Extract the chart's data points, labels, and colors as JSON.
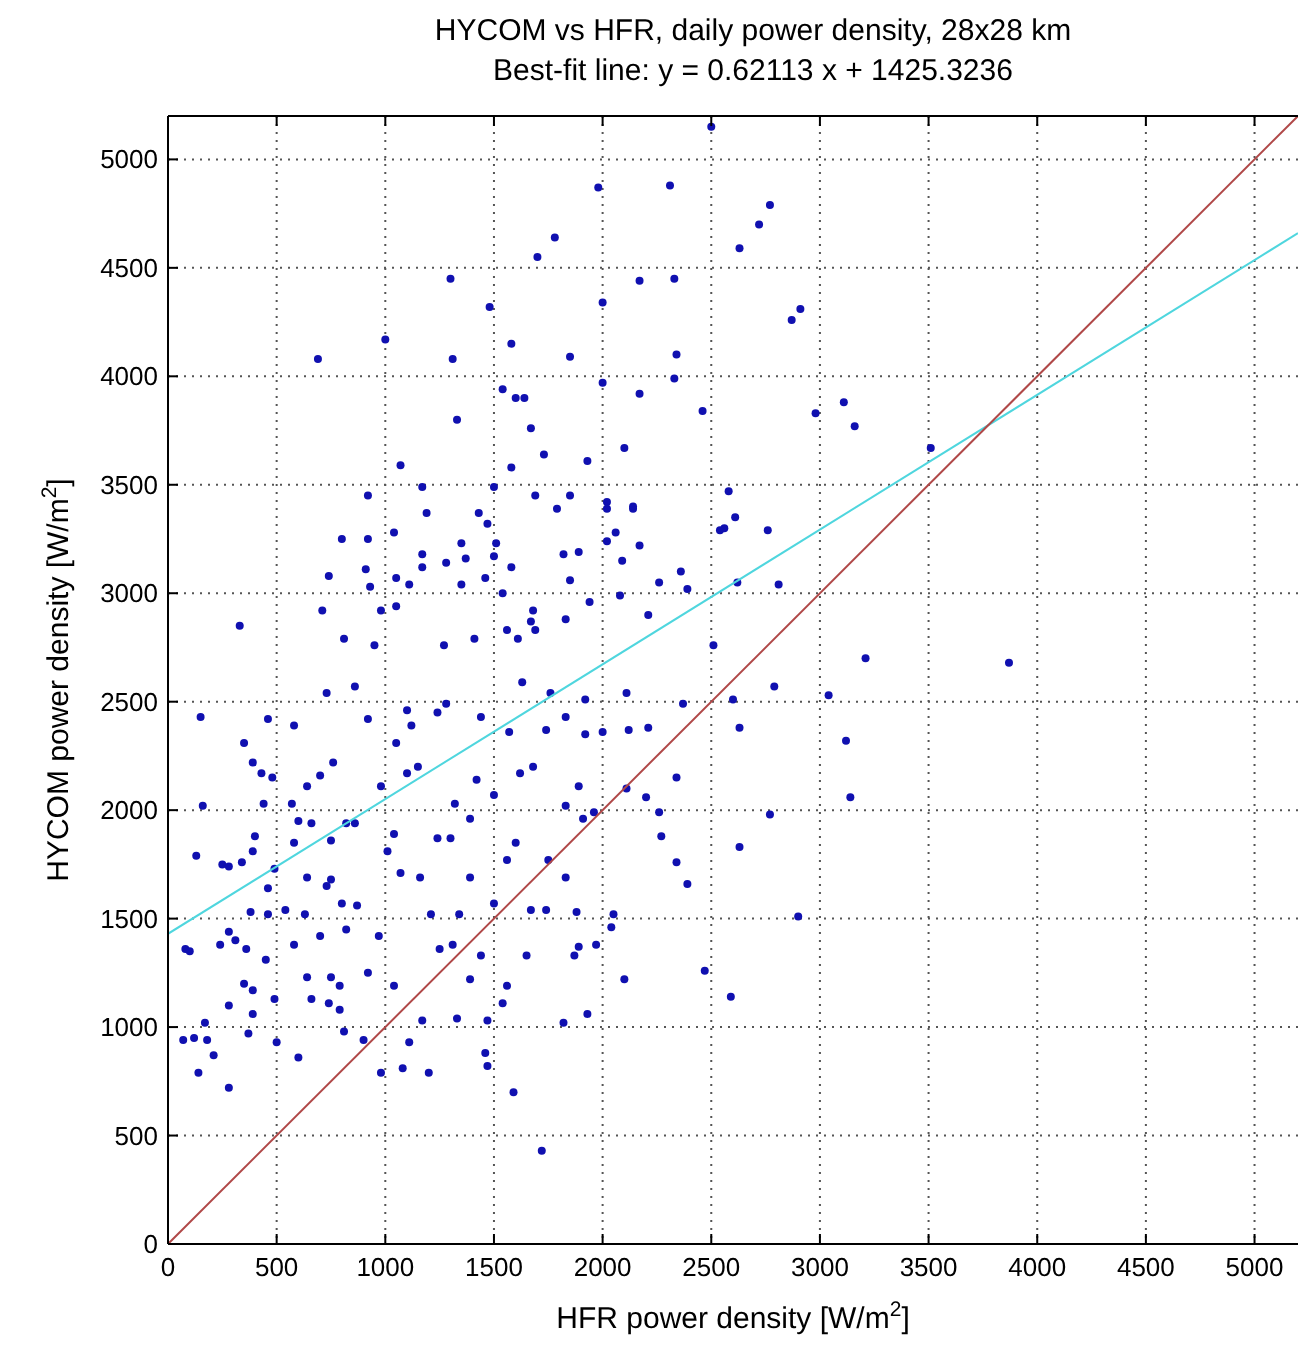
{
  "chart_data": {
    "type": "scatter",
    "title": "HYCOM vs HFR, daily power density, 28x28 km",
    "subtitle": "Best-fit line: y = 0.62113 x + 1425.3236",
    "xlabel": "HFR power density [W/m$^{2}$]",
    "ylabel": "HYCOM power density [W/m$^{2}$]",
    "xlim": [
      0,
      5200
    ],
    "ylim": [
      0,
      5200
    ],
    "xticks": [
      0,
      500,
      1000,
      1500,
      2000,
      2500,
      3000,
      3500,
      4000,
      4500,
      5000
    ],
    "yticks": [
      0,
      500,
      1000,
      1500,
      2000,
      2500,
      3000,
      3500,
      4000,
      4500,
      5000
    ],
    "grid": true,
    "series": [
      {
        "color": "#1010b0",
        "marker": "circle",
        "x": [
          1980,
          2310,
          1780,
          1700,
          1300,
          1480,
          2170,
          2330,
          2000,
          1000,
          690,
          1310,
          1580,
          1850,
          2340,
          2000,
          2330,
          2170,
          2460,
          1540,
          1600,
          1640,
          1330,
          1670,
          2100,
          1730,
          1930,
          1070,
          1580,
          1170,
          1500,
          920,
          1690,
          1850,
          2020,
          2140,
          1190,
          1790,
          2560,
          150,
          160,
          130,
          80,
          100,
          170,
          70,
          120,
          180,
          210,
          140,
          280,
          250,
          280,
          240,
          280,
          310,
          280,
          370,
          390,
          350,
          390,
          430,
          480,
          440,
          400,
          340,
          390,
          460,
          490,
          380,
          460,
          360,
          450,
          350,
          390,
          490,
          500,
          600,
          570,
          600,
          580,
          640,
          700,
          760,
          660,
          750,
          820,
          860,
          640,
          750,
          540,
          630,
          730,
          800,
          870,
          820,
          580,
          700,
          640,
          750,
          790,
          660,
          740,
          790,
          810,
          900,
          980,
          920,
          970,
          1010,
          980,
          1050,
          1120,
          1240,
          1100,
          1150,
          1040,
          1070,
          1160,
          1040,
          1110,
          1080,
          1200,
          1170,
          1250,
          1210,
          1310,
          1340,
          1300,
          1240,
          1320,
          1420,
          1500,
          1390,
          1390,
          1500,
          1440,
          1390,
          1330,
          1470,
          1460,
          1470,
          1540,
          1560,
          1590,
          1720,
          1650,
          1670,
          1740,
          1750,
          1830,
          1600,
          1560,
          1620,
          1680,
          1570,
          1740,
          1830,
          1920,
          1890,
          1830,
          1910,
          1960,
          1880,
          1890,
          1870,
          1970,
          1820,
          1930,
          2100,
          2040,
          2050,
          2110,
          2200,
          2260,
          2270,
          2340,
          2340,
          2390,
          2470,
          2210,
          2370,
          2120,
          2000,
          1920,
          1760,
          1630,
          1440,
          1280,
          1100,
          920,
          860,
          730,
          580,
          460,
          330,
          710,
          800,
          740,
          920,
          910,
          930,
          1040,
          1050,
          980,
          1050,
          1110,
          1170,
          1170,
          1280,
          1350,
          1370,
          1350,
          1430,
          1470,
          1510,
          1460,
          1500,
          1540,
          1580,
          1560,
          1610,
          1680,
          1670,
          1820,
          1890,
          1850,
          1940,
          2020,
          2060,
          2090,
          2020,
          2140,
          2170,
          2260,
          2360,
          2390,
          2210,
          2080,
          1830,
          1690,
          1410,
          1270,
          950,
          810,
          2510,
          2540,
          2500,
          2770,
          2720,
          2630,
          2870,
          2910,
          3110,
          3160,
          2980,
          3510,
          2580,
          2610,
          2760,
          2810,
          2620,
          3210,
          3870,
          2600,
          2790,
          3120,
          2630,
          3140,
          2770,
          2630,
          2900,
          2590,
          3040,
          2110
        ],
        "values": [
          4870,
          4880,
          4640,
          4550,
          4450,
          4320,
          4440,
          4450,
          4340,
          4170,
          4080,
          4080,
          4150,
          4090,
          4100,
          3970,
          3990,
          3920,
          3840,
          3940,
          3900,
          3900,
          3800,
          3760,
          3670,
          3640,
          3610,
          3590,
          3580,
          3490,
          3490,
          3450,
          3450,
          3450,
          3420,
          3390,
          3370,
          3390,
          3300,
          2430,
          2020,
          1790,
          1360,
          1350,
          1020,
          940,
          950,
          940,
          870,
          790,
          720,
          1750,
          1740,
          1380,
          1440,
          1400,
          1100,
          970,
          1060,
          2310,
          2220,
          2170,
          2150,
          2030,
          1880,
          1760,
          1810,
          1640,
          1730,
          1530,
          1520,
          1360,
          1310,
          1200,
          1170,
          1130,
          930,
          860,
          2030,
          1950,
          1850,
          2110,
          2160,
          2220,
          1940,
          1860,
          1940,
          1940,
          1690,
          1680,
          1540,
          1520,
          1650,
          1570,
          1560,
          1450,
          1380,
          1420,
          1230,
          1230,
          1190,
          1130,
          1110,
          1080,
          980,
          940,
          790,
          1250,
          1420,
          1810,
          2110,
          2310,
          2390,
          2450,
          2170,
          2200,
          1890,
          1710,
          1690,
          1190,
          930,
          810,
          790,
          1030,
          1360,
          1520,
          1380,
          1520,
          1870,
          1870,
          2030,
          2140,
          2070,
          1960,
          1690,
          1570,
          1330,
          1220,
          1040,
          1030,
          880,
          820,
          1110,
          1190,
          700,
          430,
          1330,
          1540,
          1540,
          1770,
          1690,
          1850,
          1770,
          2170,
          2200,
          2360,
          2370,
          2430,
          2350,
          2110,
          2020,
          1960,
          1990,
          1530,
          1370,
          1330,
          1380,
          1020,
          1060,
          1220,
          1460,
          1520,
          2100,
          2060,
          1990,
          1880,
          2150,
          1760,
          1660,
          1260,
          2380,
          2490,
          2370,
          2360,
          2510,
          2540,
          2590,
          2430,
          2490,
          2460,
          2420,
          2570,
          2540,
          2390,
          2420,
          2850,
          2920,
          3250,
          3080,
          3250,
          3110,
          3030,
          3280,
          3070,
          2920,
          2940,
          3040,
          3180,
          3120,
          3140,
          3230,
          3160,
          3040,
          3370,
          3320,
          3230,
          3070,
          3170,
          3000,
          3120,
          2830,
          2790,
          2920,
          2870,
          3180,
          3190,
          3060,
          2960,
          3240,
          3280,
          3150,
          3390,
          3400,
          3220,
          3050,
          3100,
          3020,
          2900,
          2990,
          2880,
          2830,
          2790,
          2760,
          2760,
          2790,
          2760,
          3290,
          5150,
          4790,
          4700,
          4590,
          4260,
          4310,
          3880,
          3770,
          3830,
          3670,
          3470,
          3350,
          3290,
          3040,
          3050,
          2700,
          2680,
          2510,
          2570,
          2320,
          2380,
          2060,
          1980,
          1830,
          1510,
          1140,
          2530,
          2540
        ]
      },
      {
        "type": "line",
        "color": "#4fd6de",
        "x": [
          0,
          5200
        ],
        "values": [
          1430,
          4660
        ]
      },
      {
        "type": "line",
        "color": "#b04848",
        "x": [
          0,
          5200
        ],
        "values": [
          0,
          5200
        ]
      }
    ]
  }
}
